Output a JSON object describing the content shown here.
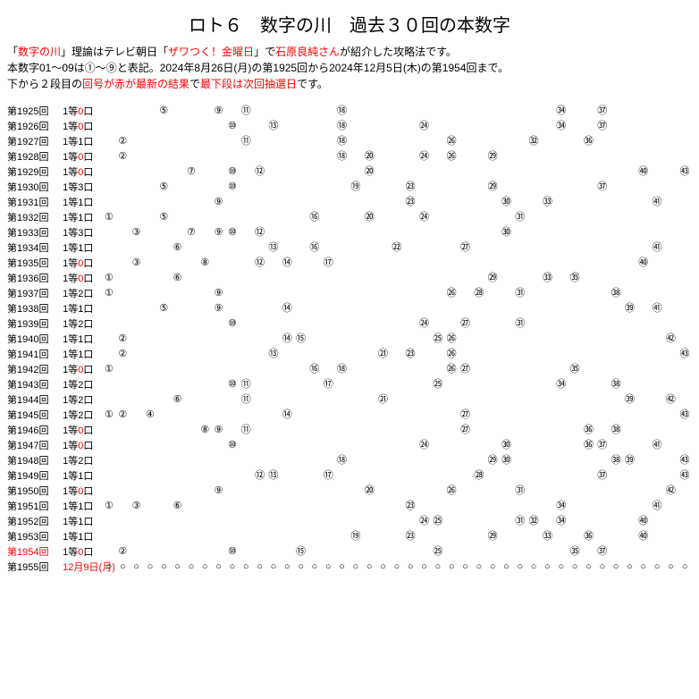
{
  "title": "ロト６　数字の川　過去３０回の本数字",
  "desc_parts": {
    "p1a": "「",
    "p1b": "数字の川",
    "p1c": "」理論はテレビ朝日「",
    "p1d": "ザワつく！金曜日",
    "p1e": "」で",
    "p1f": "石原良純さん",
    "p1g": "が紹介した攻略法です。",
    "p2": "本数字01～09は①～⑨と表記。2024年8月26日(月)の第1925回から2024年12月5日(木)の第1954回まで。",
    "p3a": "下から２段目の",
    "p3b": "回号が赤が最新の結果",
    "p3c": "で",
    "p3d": "最下段は次回抽選日",
    "p3e": "です。"
  },
  "circled": [
    "",
    "①",
    "②",
    "③",
    "④",
    "⑤",
    "⑥",
    "⑦",
    "⑧",
    "⑨",
    "⑩",
    "⑪",
    "⑫",
    "⑬",
    "⑭",
    "⑮",
    "⑯",
    "⑰",
    "⑱",
    "⑲",
    "⑳",
    "㉑",
    "㉒",
    "㉓",
    "㉔",
    "㉕",
    "㉖",
    "㉗",
    "㉘",
    "㉙",
    "㉚",
    "㉛",
    "㉜",
    "㉝",
    "㉞",
    "㉟",
    "㊱",
    "㊲",
    "㊳",
    "㊴",
    "㊵",
    "㊶",
    "㊷",
    "㊸"
  ],
  "open_circle": "○",
  "next_date": "12月9日(月)",
  "rows": [
    {
      "draw": "第1925回",
      "prize": "1等0口",
      "nums": [
        5,
        9,
        11,
        18,
        34,
        37
      ]
    },
    {
      "draw": "第1926回",
      "prize": "1等0口",
      "nums": [
        10,
        13,
        18,
        24,
        34,
        37
      ]
    },
    {
      "draw": "第1927回",
      "prize": "1等1口",
      "nums": [
        2,
        11,
        18,
        26,
        32,
        36
      ]
    },
    {
      "draw": "第1928回",
      "prize": "1等0口",
      "nums": [
        2,
        18,
        20,
        24,
        26,
        29
      ]
    },
    {
      "draw": "第1929回",
      "prize": "1等0口",
      "nums": [
        7,
        10,
        12,
        20,
        40,
        43
      ]
    },
    {
      "draw": "第1930回",
      "prize": "1等3口",
      "nums": [
        5,
        10,
        19,
        23,
        29,
        37
      ]
    },
    {
      "draw": "第1931回",
      "prize": "1等1口",
      "nums": [
        9,
        23,
        30,
        33,
        41
      ]
    },
    {
      "draw": "第1932回",
      "prize": "1等1口",
      "nums": [
        1,
        5,
        16,
        20,
        24,
        31
      ]
    },
    {
      "draw": "第1933回",
      "prize": "1等3口",
      "nums": [
        3,
        7,
        9,
        10,
        12,
        30
      ]
    },
    {
      "draw": "第1934回",
      "prize": "1等1口",
      "nums": [
        6,
        13,
        16,
        22,
        27,
        41
      ]
    },
    {
      "draw": "第1935回",
      "prize": "1等0口",
      "nums": [
        3,
        8,
        12,
        14,
        17,
        40
      ]
    },
    {
      "draw": "第1936回",
      "prize": "1等0口",
      "nums": [
        1,
        6,
        29,
        33,
        35
      ]
    },
    {
      "draw": "第1937回",
      "prize": "1等2口",
      "nums": [
        1,
        9,
        26,
        28,
        31,
        38
      ]
    },
    {
      "draw": "第1938回",
      "prize": "1等1口",
      "nums": [
        5,
        9,
        14,
        39,
        41
      ]
    },
    {
      "draw": "第1939回",
      "prize": "1等2口",
      "nums": [
        10,
        24,
        27,
        31
      ]
    },
    {
      "draw": "第1940回",
      "prize": "1等1口",
      "nums": [
        2,
        14,
        15,
        25,
        26,
        42
      ]
    },
    {
      "draw": "第1941回",
      "prize": "1等1口",
      "nums": [
        2,
        13,
        21,
        23,
        26,
        43
      ]
    },
    {
      "draw": "第1942回",
      "prize": "1等0口",
      "nums": [
        1,
        16,
        18,
        26,
        27,
        35
      ]
    },
    {
      "draw": "第1943回",
      "prize": "1等2口",
      "nums": [
        10,
        11,
        17,
        25,
        34,
        38
      ]
    },
    {
      "draw": "第1944回",
      "prize": "1等2口",
      "nums": [
        6,
        11,
        21,
        39,
        42
      ]
    },
    {
      "draw": "第1945回",
      "prize": "1等2口",
      "nums": [
        1,
        2,
        4,
        14,
        27,
        43
      ]
    },
    {
      "draw": "第1946回",
      "prize": "1等0口",
      "nums": [
        8,
        9,
        11,
        27,
        36,
        38
      ]
    },
    {
      "draw": "第1947回",
      "prize": "1等0口",
      "nums": [
        10,
        24,
        30,
        36,
        37,
        41
      ]
    },
    {
      "draw": "第1948回",
      "prize": "1等2口",
      "nums": [
        18,
        29,
        30,
        38,
        39,
        43
      ]
    },
    {
      "draw": "第1949回",
      "prize": "1等1口",
      "nums": [
        12,
        13,
        17,
        28,
        37,
        43
      ]
    },
    {
      "draw": "第1950回",
      "prize": "1等0口",
      "nums": [
        9,
        20,
        26,
        31,
        42
      ]
    },
    {
      "draw": "第1951回",
      "prize": "1等1口",
      "nums": [
        1,
        3,
        6,
        23,
        34,
        41
      ]
    },
    {
      "draw": "第1952回",
      "prize": "1等1口",
      "nums": [
        24,
        25,
        31,
        32,
        34,
        40
      ]
    },
    {
      "draw": "第1953回",
      "prize": "1等1口",
      "nums": [
        19,
        23,
        29,
        33,
        36,
        40
      ]
    },
    {
      "draw": "第1954回",
      "prize": "1等0口",
      "nums": [
        2,
        10,
        15,
        25,
        35,
        37
      ],
      "red": true
    },
    {
      "draw": "第1955回",
      "open": true
    }
  ]
}
